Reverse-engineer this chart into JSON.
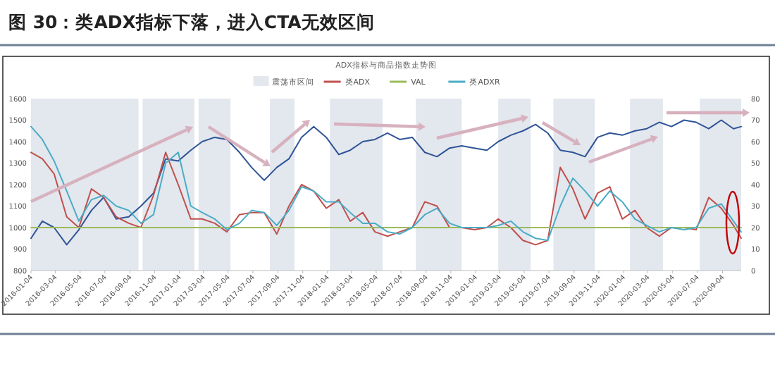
{
  "chart_data": {
    "type": "line",
    "title": "图 30：类ADX指标下落，进入CTA无效区间",
    "subtitle": "ADX指标与商品指数走势图",
    "x": [
      "2016-01-04",
      "2016-02",
      "2016-03",
      "2016-04",
      "2016-05",
      "2016-06",
      "2016-07",
      "2016-08",
      "2016-09",
      "2016-10",
      "2016-11",
      "2016-12",
      "2017-01",
      "2017-02",
      "2017-03",
      "2017-04",
      "2017-05",
      "2017-06",
      "2017-07",
      "2017-08",
      "2017-09",
      "2017-10",
      "2017-11",
      "2017-12",
      "2018-01",
      "2018-02",
      "2018-03",
      "2018-04",
      "2018-05",
      "2018-06",
      "2018-07",
      "2018-08",
      "2018-09",
      "2018-10",
      "2018-11",
      "2018-12",
      "2019-01",
      "2019-02",
      "2019-03",
      "2019-04",
      "2019-05",
      "2019-06",
      "2019-07",
      "2019-08",
      "2019-09",
      "2019-10",
      "2019-11",
      "2019-12",
      "2020-01",
      "2020-02",
      "2020-03",
      "2020-04",
      "2020-05",
      "2020-06",
      "2020-07",
      "2020-08",
      "2020-09",
      "2020-10",
      "2020-10-20"
    ],
    "xlim": [
      "2016-01-04",
      "2020-10-20"
    ],
    "xticks": [
      "2016-01-04",
      "2016-03-04",
      "2016-05-04",
      "2016-07-04",
      "2016-09-04",
      "2016-11-04",
      "2017-01-04",
      "2017-03-04",
      "2017-05-04",
      "2017-07-04",
      "2017-09-04",
      "2017-11-04",
      "2018-01-04",
      "2018-03-04",
      "2018-05-04",
      "2018-07-04",
      "2018-09-04",
      "2018-11-04",
      "2019-01-04",
      "2019-03-04",
      "2019-05-04",
      "2019-07-04",
      "2019-09-04",
      "2019-11-04",
      "2020-01-04",
      "2020-03-04",
      "2020-05-04",
      "2020-07-04",
      "2020-09-04"
    ],
    "ylim": [
      800,
      1600
    ],
    "yticks": [
      800,
      900,
      1000,
      1100,
      1200,
      1300,
      1400,
      1500,
      1600
    ],
    "y2lim": [
      0,
      80
    ],
    "y2ticks": [
      0,
      10,
      20,
      30,
      40,
      50,
      60,
      70,
      80
    ],
    "grid": false,
    "legend": "top",
    "bands": [
      {
        "axis": "x",
        "from": "2016-01-04",
        "to": "2016-09-25",
        "label": "震荡市区间",
        "color": "#e3e7ee"
      },
      {
        "axis": "x",
        "from": "2016-10-05",
        "to": "2017-02-10",
        "color": "#e3e7ee"
      },
      {
        "axis": "x",
        "from": "2017-02-20",
        "to": "2017-05-10",
        "color": "#e3e7ee"
      },
      {
        "axis": "x",
        "from": "2017-08-15",
        "to": "2017-10-15",
        "color": "#e3e7ee"
      },
      {
        "axis": "x",
        "from": "2018-01-10",
        "to": "2018-05-20",
        "color": "#e3e7ee"
      },
      {
        "axis": "x",
        "from": "2018-08-10",
        "to": "2018-12-01",
        "color": "#e3e7ee"
      },
      {
        "axis": "x",
        "from": "2019-03-01",
        "to": "2019-05-20",
        "color": "#e3e7ee"
      },
      {
        "axis": "x",
        "from": "2019-07-15",
        "to": "2019-10-25",
        "color": "#e3e7ee"
      },
      {
        "axis": "x",
        "from": "2020-01-20",
        "to": "2020-04-10",
        "color": "#e3e7ee"
      },
      {
        "axis": "x",
        "from": "2020-07-10",
        "to": "2020-10-20",
        "color": "#e3e7ee"
      }
    ],
    "series": [
      {
        "color": "#2f5597",
        "values": [
          950,
          1030,
          1000,
          920,
          990,
          1080,
          1140,
          1040,
          1050,
          1100,
          1160,
          1320,
          1310,
          1360,
          1400,
          1420,
          1410,
          1350,
          1280,
          1220,
          1280,
          1320,
          1420,
          1470,
          1420,
          1340,
          1360,
          1400,
          1410,
          1440,
          1410,
          1420,
          1350,
          1330,
          1370,
          1380,
          1370,
          1360,
          1400,
          1430,
          1450,
          1480,
          1440,
          1360,
          1350,
          1330,
          1420,
          1440,
          1430,
          1450,
          1460,
          1490,
          1470,
          1500,
          1490,
          1460,
          1500,
          1460,
          1470
        ]
      },
      {
        "name": "类ADX",
        "color": "#c0504d",
        "axis": "y2",
        "values": [
          55,
          52,
          45,
          25,
          20,
          38,
          34,
          25,
          22,
          20,
          35,
          55,
          40,
          24,
          24,
          22,
          18,
          26,
          27,
          27,
          17,
          30,
          40,
          37,
          29,
          33,
          23,
          27,
          18,
          16,
          18,
          20,
          32,
          30,
          20,
          20,
          19,
          20,
          24,
          20,
          14,
          12,
          14,
          48,
          38,
          24,
          36,
          39,
          24,
          28,
          20,
          16,
          20,
          20,
          19,
          34,
          29,
          21,
          15
        ]
      },
      {
        "name": "VAL",
        "color": "#9bbb59",
        "axis": "y2",
        "x": [
          "2016-01-04",
          "2020-10-20"
        ],
        "values": [
          20,
          20
        ]
      },
      {
        "name": "类ADXR",
        "color": "#4bacc6",
        "axis": "y2",
        "values": [
          67,
          61,
          51,
          37,
          23,
          33,
          35,
          30,
          28,
          22,
          26,
          50,
          55,
          30,
          27,
          24,
          19,
          22,
          28,
          27,
          21,
          28,
          39,
          37,
          32,
          32,
          27,
          22,
          22,
          18,
          17,
          20,
          26,
          29,
          22,
          20,
          20,
          20,
          21,
          23,
          18,
          15,
          14,
          30,
          43,
          37,
          30,
          37,
          32,
          24,
          21,
          18,
          20,
          19,
          20,
          29,
          31,
          23,
          18
        ]
      }
    ]
  }
}
